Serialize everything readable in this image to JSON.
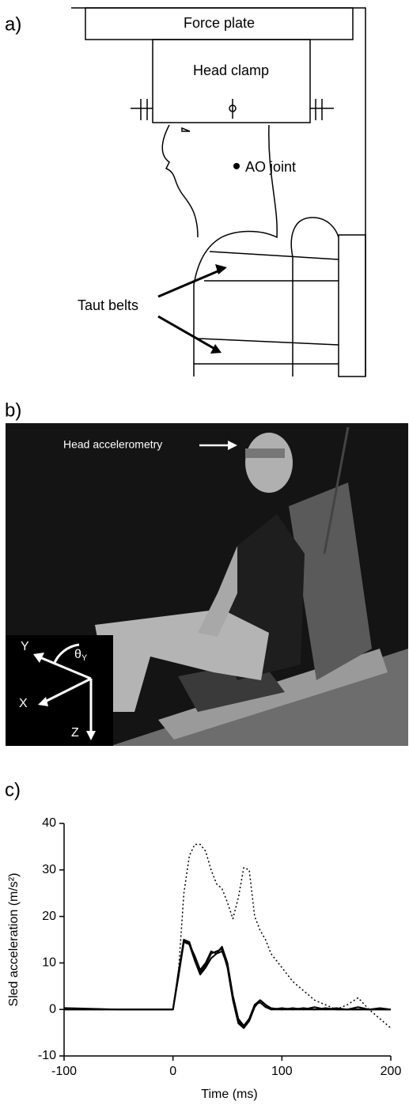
{
  "panels": {
    "a": {
      "label": "a)",
      "force_plate": "Force plate",
      "head_clamp": "Head clamp",
      "ao_joint": "AO joint",
      "belts": "Taut belts"
    },
    "b": {
      "label": "b)",
      "annotation": "Head accelerometry",
      "axes": {
        "y": "Y",
        "theta": "θ",
        "theta_sub": "Y",
        "x": "X",
        "z": "Z"
      }
    },
    "c": {
      "label": "c)"
    }
  },
  "chart_data": {
    "type": "line",
    "xlabel": "Time (ms)",
    "ylabel": "Sled acceleration (m/s²)",
    "x": [
      -100,
      -50,
      0,
      5,
      10,
      15,
      20,
      25,
      30,
      35,
      40,
      45,
      50,
      55,
      60,
      65,
      70,
      75,
      80,
      85,
      90,
      100,
      110,
      120,
      130,
      140,
      150,
      160,
      170,
      180,
      190,
      200
    ],
    "series": [
      {
        "color": "#000000",
        "dash": "solid",
        "values": [
          0.3,
          0,
          0,
          8,
          15,
          14.5,
          11,
          8,
          9.5,
          12,
          12.5,
          13,
          9,
          2,
          -3,
          -4,
          -2,
          1,
          2,
          1,
          0,
          0,
          0,
          0,
          0.5,
          0,
          0,
          0,
          0,
          0,
          0,
          0
        ]
      },
      {
        "color": "#000000",
        "dash": "solid",
        "values": [
          0,
          0,
          0,
          7,
          14.5,
          14,
          10.5,
          7.5,
          9,
          11,
          12,
          12.5,
          9.5,
          2.5,
          -2.5,
          -4,
          -2.5,
          0.5,
          2,
          1,
          0.3,
          0,
          0.3,
          0,
          0,
          0.3,
          0,
          0,
          0.5,
          0,
          0,
          0
        ]
      },
      {
        "color": "#000000",
        "dash": "solid",
        "values": [
          0,
          0,
          0,
          7.5,
          15,
          14,
          11.5,
          8.5,
          10,
          12.5,
          12,
          13.5,
          10,
          3,
          -2,
          -3.5,
          -2,
          1,
          1.5,
          0.5,
          0,
          0.3,
          0,
          0.3,
          0,
          0,
          0.3,
          0,
          0,
          0,
          0.3,
          0
        ]
      },
      {
        "color": "#000000",
        "dash": "dotted",
        "values": [
          0,
          0,
          0,
          8,
          25,
          33,
          35.5,
          35.5,
          34,
          30,
          27,
          26,
          23,
          19.5,
          24,
          30.5,
          30,
          20,
          17,
          15,
          12,
          9,
          6,
          4,
          2,
          1,
          0,
          1,
          2.5,
          0,
          -2,
          -4
        ]
      }
    ],
    "xlim": [
      -100,
      200
    ],
    "xticks": [
      -100,
      0,
      100,
      200
    ],
    "ylim": [
      -10,
      40
    ],
    "yticks": [
      -10,
      0,
      10,
      20,
      30,
      40
    ]
  }
}
